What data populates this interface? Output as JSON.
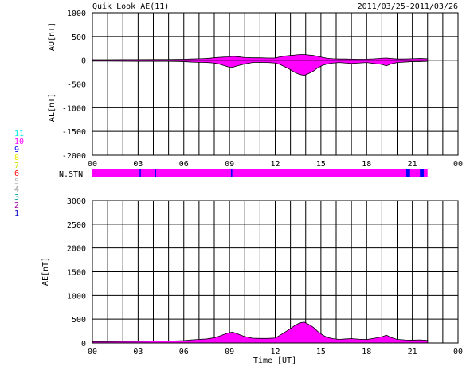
{
  "header": {
    "title": "Quik Look AE(11)",
    "date_range": "2011/03/25-2011/03/26"
  },
  "station_legend": {
    "items": [
      {
        "label": "11",
        "color": "#00e8e8"
      },
      {
        "label": "10",
        "color": "#ff00ff"
      },
      {
        "label": "9",
        "color": "#0000ff"
      },
      {
        "label": "8",
        "color": "#e8e800"
      },
      {
        "label": "7",
        "color": "#c8e000"
      },
      {
        "label": "6",
        "color": "#ff0000"
      },
      {
        "label": "5",
        "color": "#c0c0c0"
      },
      {
        "label": "4",
        "color": "#909090"
      },
      {
        "label": "3",
        "color": "#00a0a0"
      },
      {
        "label": "2",
        "color": "#a000a0"
      },
      {
        "label": "1",
        "color": "#0000c0"
      }
    ]
  },
  "nstn_label": "N.STN",
  "chart_data": [
    {
      "type": "area",
      "name": "AU/AL",
      "ylabel_top": "AU[nT]",
      "ylabel_bottom": "AL[nT]",
      "xlim": [
        0,
        24
      ],
      "ylim": [
        -2000,
        1000
      ],
      "yticks": [
        1000,
        500,
        0,
        -500,
        -1000,
        -1500,
        -2000
      ],
      "xticks": [
        "00",
        "03",
        "06",
        "09",
        "12",
        "15",
        "18",
        "21",
        "00"
      ],
      "grid": true,
      "fill_color": "#ff00ff",
      "au": {
        "x": [
          0,
          1,
          2,
          3,
          4,
          5,
          6,
          6.5,
          7,
          7.5,
          8,
          8.3,
          8.6,
          8.9,
          9.2,
          9.5,
          10,
          10.5,
          11,
          11.5,
          12,
          12.3,
          12.7,
          13,
          13.3,
          13.6,
          13.9,
          14.2,
          14.5,
          14.8,
          15.1,
          15.4,
          15.8,
          16.2,
          16.6,
          17,
          17.5,
          18,
          18.5,
          19,
          19.3,
          19.6,
          20,
          20.5,
          21,
          21.5,
          22
        ],
        "y": [
          10,
          10,
          12,
          12,
          15,
          15,
          20,
          25,
          30,
          35,
          50,
          60,
          65,
          70,
          80,
          75,
          55,
          50,
          50,
          45,
          45,
          70,
          90,
          100,
          110,
          120,
          120,
          110,
          100,
          80,
          60,
          40,
          30,
          25,
          25,
          22,
          20,
          22,
          28,
          40,
          45,
          35,
          25,
          25,
          30,
          35,
          30
        ]
      },
      "al": {
        "x": [
          0,
          1,
          2,
          3,
          4,
          5,
          6,
          6.5,
          7,
          7.5,
          8,
          8.3,
          8.6,
          8.9,
          9.2,
          9.5,
          10,
          10.5,
          11,
          11.5,
          12,
          12.3,
          12.7,
          13,
          13.3,
          13.6,
          13.9,
          14.2,
          14.5,
          14.8,
          15.1,
          15.4,
          15.8,
          16.2,
          16.6,
          17,
          17.5,
          18,
          18.5,
          19,
          19.3,
          19.6,
          20,
          20.5,
          21,
          21.5,
          22
        ],
        "y": [
          -20,
          -20,
          -22,
          -25,
          -25,
          -25,
          -30,
          -40,
          -45,
          -50,
          -60,
          -80,
          -110,
          -140,
          -150,
          -120,
          -80,
          -50,
          -45,
          -50,
          -60,
          -90,
          -150,
          -200,
          -260,
          -300,
          -320,
          -280,
          -230,
          -160,
          -110,
          -80,
          -60,
          -50,
          -60,
          -70,
          -60,
          -50,
          -70,
          -90,
          -120,
          -80,
          -50,
          -40,
          -30,
          -30,
          -25
        ]
      }
    },
    {
      "type": "area",
      "name": "AE",
      "ylabel": "AE[nT]",
      "xlabel": "Time [UT]",
      "xlim": [
        0,
        24
      ],
      "ylim": [
        0,
        3000
      ],
      "yticks": [
        3000,
        2500,
        2000,
        1500,
        1000,
        500,
        0
      ],
      "xticks": [
        "00",
        "03",
        "06",
        "09",
        "12",
        "15",
        "18",
        "21",
        "00"
      ],
      "grid": true,
      "fill_color": "#ff00ff",
      "x": [
        0,
        1,
        2,
        3,
        4,
        5,
        6,
        6.5,
        7,
        7.5,
        8,
        8.3,
        8.6,
        8.9,
        9.2,
        9.5,
        10,
        10.5,
        11,
        11.5,
        12,
        12.3,
        12.7,
        13,
        13.3,
        13.6,
        13.9,
        14.2,
        14.5,
        14.8,
        15.1,
        15.4,
        15.8,
        16.2,
        16.6,
        17,
        17.5,
        18,
        18.5,
        19,
        19.3,
        19.6,
        20,
        20.5,
        21,
        21.5,
        22
      ],
      "y": [
        30,
        30,
        34,
        37,
        40,
        40,
        50,
        65,
        75,
        85,
        110,
        140,
        175,
        210,
        230,
        195,
        135,
        100,
        95,
        95,
        105,
        160,
        240,
        300,
        370,
        420,
        440,
        390,
        330,
        240,
        170,
        120,
        90,
        75,
        85,
        92,
        80,
        72,
        98,
        130,
        165,
        115,
        75,
        65,
        60,
        65,
        55
      ]
    },
    {
      "type": "table",
      "name": "N.STN",
      "xlim": [
        0,
        24
      ],
      "end_hour": 22,
      "base_color": "#ff00ff",
      "markers": [
        {
          "hour": 3.1,
          "color": "#0000ff",
          "width_h": 0.08
        },
        {
          "hour": 4.1,
          "color": "#0000ff",
          "width_h": 0.08
        },
        {
          "hour": 9.1,
          "color": "#0000ff",
          "width_h": 0.08
        },
        {
          "hour": 20.6,
          "color": "#0000ff",
          "width_h": 0.25
        },
        {
          "hour": 21.5,
          "color": "#0000ff",
          "width_h": 0.25
        }
      ]
    }
  ]
}
